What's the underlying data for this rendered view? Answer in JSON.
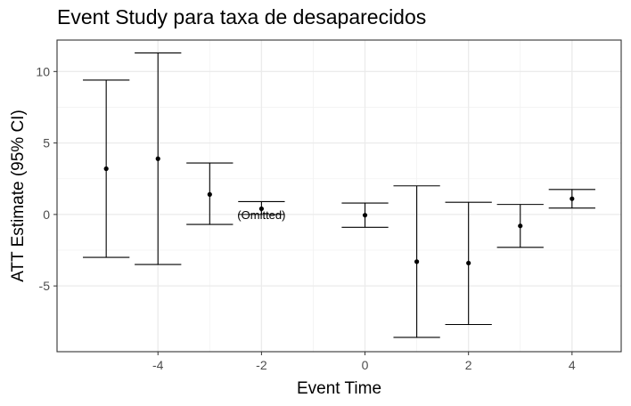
{
  "chart_data": {
    "type": "scatter",
    "title": "Event Study para taxa de desaparecidos",
    "xlabel": "Event Time",
    "ylabel": "ATT Estimate (95% CI)",
    "xlim": [
      -5.95,
      4.95
    ],
    "ylim": [
      -9.6,
      12.2
    ],
    "x_ticks": [
      -4,
      -2,
      0,
      2,
      4
    ],
    "y_ticks": [
      -5,
      0,
      5,
      10
    ],
    "grid": true,
    "points": [
      {
        "x": -5,
        "y": 3.2,
        "lo": -3.0,
        "hi": 9.4
      },
      {
        "x": -4,
        "y": 3.9,
        "lo": -3.5,
        "hi": 11.3
      },
      {
        "x": -3,
        "y": 1.4,
        "lo": -0.7,
        "hi": 3.6
      },
      {
        "x": -2,
        "y": 0.4,
        "lo": 0.0,
        "hi": 0.9
      },
      {
        "x": 0,
        "y": -0.05,
        "lo": -0.9,
        "hi": 0.8
      },
      {
        "x": 1,
        "y": -3.3,
        "lo": -8.6,
        "hi": 2.0
      },
      {
        "x": 2,
        "y": -3.4,
        "lo": -7.7,
        "hi": 0.85
      },
      {
        "x": 3,
        "y": -0.8,
        "lo": -2.3,
        "hi": 0.7
      },
      {
        "x": 4,
        "y": 1.1,
        "lo": 0.45,
        "hi": 1.75
      }
    ],
    "annotation": {
      "x": -2,
      "y": 0,
      "text": "(Omitted)"
    }
  }
}
